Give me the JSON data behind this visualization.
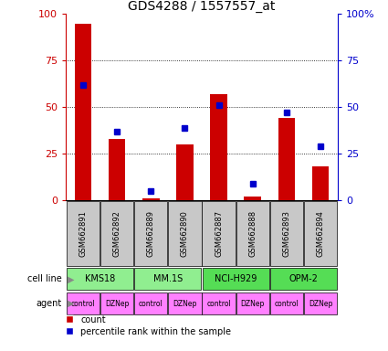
{
  "title": "GDS4288 / 1557557_at",
  "samples": [
    "GSM662891",
    "GSM662892",
    "GSM662889",
    "GSM662890",
    "GSM662887",
    "GSM662888",
    "GSM662893",
    "GSM662894"
  ],
  "counts": [
    95,
    33,
    1,
    30,
    57,
    2,
    44,
    18
  ],
  "percentile_ranks": [
    62,
    37,
    5,
    39,
    51,
    9,
    47,
    29
  ],
  "cell_lines": [
    {
      "label": "KMS18",
      "start": 0,
      "end": 2,
      "color": "#90EE90"
    },
    {
      "label": "MM.1S",
      "start": 2,
      "end": 4,
      "color": "#90EE90"
    },
    {
      "label": "NCI-H929",
      "start": 4,
      "end": 6,
      "color": "#55DD55"
    },
    {
      "label": "OPM-2",
      "start": 6,
      "end": 8,
      "color": "#55DD55"
    }
  ],
  "agents": [
    "control",
    "DZNep",
    "control",
    "DZNep",
    "control",
    "DZNep",
    "control",
    "DZNep"
  ],
  "agent_color": "#FF80FF",
  "bar_color": "#CC0000",
  "scatter_color": "#0000CC",
  "ylim_left": [
    0,
    100
  ],
  "ylim_right": [
    0,
    100
  ],
  "grid_values": [
    25,
    50,
    75
  ],
  "left_ylabel_color": "#CC0000",
  "right_ylabel_color": "#0000CC",
  "bg_color": "#FFFFFF",
  "sample_bg_color": "#C8C8C8",
  "arrow_color": "#888888",
  "left_yticks": [
    0,
    25,
    50,
    75,
    100
  ],
  "right_ytick_labels": [
    "0",
    "25",
    "50",
    "75",
    "100%"
  ],
  "title_fontsize": 10,
  "bar_width": 0.5
}
